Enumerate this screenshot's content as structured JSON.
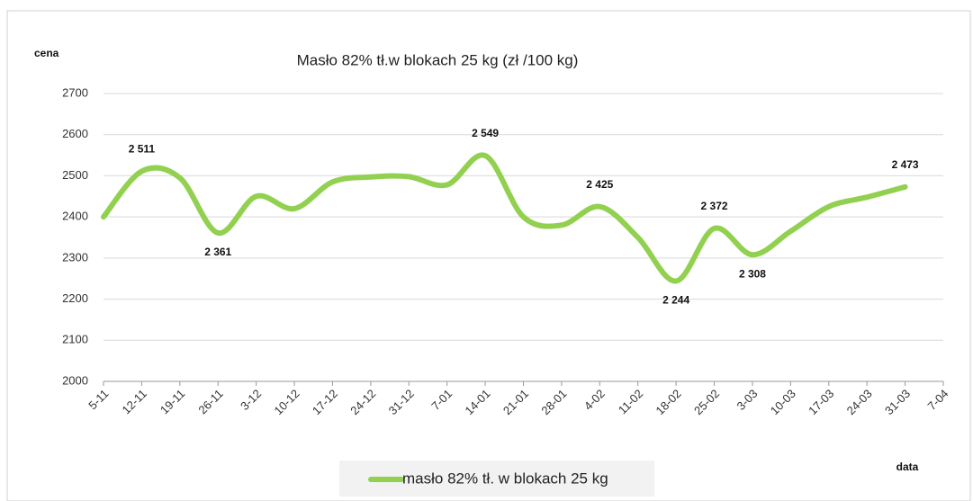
{
  "chart_data": {
    "type": "line",
    "title": "Masło 82% tł.w blokach 25 kg (zł /100 kg)",
    "y_label": "cena",
    "x_label": "data",
    "categories": [
      "5-11",
      "12-11",
      "19-11",
      "26-11",
      "3-12",
      "10-12",
      "17-12",
      "24-12",
      "31-12",
      "7-01",
      "14-01",
      "21-01",
      "28-01",
      "4-02",
      "11-02",
      "18-02",
      "25-02",
      "3-03",
      "10-03",
      "17-03",
      "24-03",
      "31-03",
      "7-04"
    ],
    "series": [
      {
        "name": "masło 82% tł. w blokach 25 kg",
        "color": "#92d050",
        "values": [
          2400,
          2511,
          2495,
          2361,
          2450,
          2420,
          2485,
          2497,
          2498,
          2478,
          2549,
          2400,
          2380,
          2425,
          2350,
          2244,
          2372,
          2308,
          2365,
          2425,
          2448,
          2473,
          null
        ],
        "value_labels": [
          null,
          "2 511",
          null,
          "2 361",
          null,
          null,
          null,
          null,
          null,
          null,
          "2 549",
          null,
          null,
          "2 425",
          null,
          "2 244",
          "2 372",
          "2 308",
          null,
          null,
          null,
          "2 473",
          null
        ]
      }
    ],
    "ylim": [
      2000,
      2700
    ],
    "yticks": [
      2000,
      2100,
      2200,
      2300,
      2400,
      2500,
      2600,
      2700
    ],
    "grid": true
  }
}
